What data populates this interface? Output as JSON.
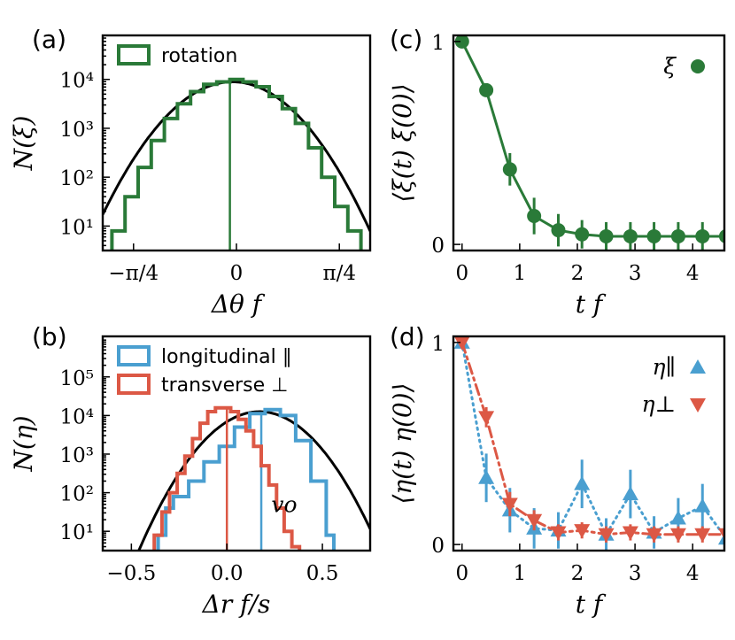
{
  "colors": {
    "green": "#2a7a38",
    "blue": "#4a9fd0",
    "red": "#dc5845",
    "black": "#000000"
  },
  "chart_data": [
    {
      "panel": "(a)",
      "type": "histogram",
      "ylabel": "N(ξ)",
      "xlabel": "Δθ f",
      "yscale": "log",
      "ylim_log10": [
        0.5,
        4.9
      ],
      "xlim": [
        -1.02,
        1.02
      ],
      "yticks": [
        {
          "v": 1,
          "label": "10¹"
        },
        {
          "v": 2,
          "label": "10²"
        },
        {
          "v": 3,
          "label": "10³"
        },
        {
          "v": 4,
          "label": "10⁴"
        }
      ],
      "xticks": [
        {
          "v": -0.785,
          "label": "−π/4"
        },
        {
          "v": 0,
          "label": "0"
        },
        {
          "v": 0.785,
          "label": "π/4"
        }
      ],
      "legend": [
        "rotation"
      ],
      "series": [
        {
          "name": "rotation",
          "color": "green",
          "bin_edges": [
            -0.95,
            -0.85,
            -0.75,
            -0.65,
            -0.55,
            -0.45,
            -0.35,
            -0.25,
            -0.15,
            -0.05,
            0.05,
            0.15,
            0.25,
            0.35,
            0.45,
            0.55,
            0.65,
            0.75,
            0.85,
            0.95
          ],
          "log10_counts": [
            0.9,
            1.6,
            2.2,
            2.75,
            3.2,
            3.5,
            3.75,
            3.9,
            3.95,
            4.0,
            3.95,
            3.85,
            3.65,
            3.4,
            3.1,
            2.6,
            2.0,
            1.4,
            0.9
          ],
          "marker_line_x": -0.05
        }
      ],
      "fit_curve": {
        "type": "gaussian",
        "log10_peak": 3.95,
        "center": -0.03,
        "sigma": 0.28
      }
    },
    {
      "panel": "(b)",
      "type": "histogram",
      "ylabel": "N(η)",
      "xlabel": "Δr f/s",
      "yscale": "log",
      "ylim_log10": [
        0.5,
        6.05
      ],
      "xlim": [
        -0.65,
        0.75
      ],
      "yticks": [
        {
          "v": 1,
          "label": "10¹"
        },
        {
          "v": 2,
          "label": "10²"
        },
        {
          "v": 3,
          "label": "10³"
        },
        {
          "v": 4,
          "label": "10⁴"
        },
        {
          "v": 5,
          "label": "10⁵"
        }
      ],
      "xticks": [
        {
          "v": -0.5,
          "label": "−0.5"
        },
        {
          "v": 0,
          "label": "0.0"
        },
        {
          "v": 0.5,
          "label": "0.5"
        }
      ],
      "legend": [
        "longitudinal ∥",
        "transverse ⊥"
      ],
      "annotation": "vo",
      "series": [
        {
          "name": "longitudinal ∥",
          "color": "blue",
          "bin_edges": [
            -0.36,
            -0.32,
            -0.28,
            -0.2,
            -0.12,
            -0.04,
            0.04,
            0.12,
            0.2,
            0.28,
            0.36,
            0.44,
            0.52,
            0.56
          ],
          "log10_counts": [
            0.9,
            1.6,
            1.9,
            2.3,
            2.8,
            3.2,
            3.7,
            4.05,
            4.15,
            4.0,
            3.35,
            2.3,
            0.9
          ],
          "marker_line_x": 0.18
        },
        {
          "name": "transverse ⊥",
          "color": "red",
          "bin_edges": [
            -0.38,
            -0.34,
            -0.3,
            -0.26,
            -0.22,
            -0.18,
            -0.14,
            -0.1,
            -0.06,
            -0.02,
            0.02,
            0.06,
            0.1,
            0.14,
            0.18,
            0.22,
            0.26,
            0.3,
            0.34,
            0.38
          ],
          "log10_counts": [
            0.9,
            1.5,
            2.0,
            2.5,
            2.95,
            3.4,
            3.8,
            4.1,
            4.2,
            4.2,
            4.1,
            3.9,
            3.6,
            3.2,
            2.7,
            2.2,
            1.6,
            1.0,
            0.6
          ],
          "marker_line_x": 0.0
        }
      ],
      "fit_curve": {
        "type": "gaussian",
        "log10_peak": 4.1,
        "center": 0.17,
        "sigma": 0.155
      }
    },
    {
      "panel": "(c)",
      "type": "line",
      "ylabel": "⟨ξ(t) ξ(0)⟩",
      "xlabel": "t f",
      "xlim": [
        -0.15,
        4.55
      ],
      "ylim": [
        -0.03,
        1.03
      ],
      "xticks": [
        {
          "v": 0,
          "label": "0"
        },
        {
          "v": 1,
          "label": "1"
        },
        {
          "v": 2,
          "label": "2"
        },
        {
          "v": 3,
          "label": "3"
        },
        {
          "v": 4,
          "label": "4"
        }
      ],
      "yticks": [
        {
          "v": 0,
          "label": "0"
        },
        {
          "v": 1,
          "label": "1"
        }
      ],
      "legend": [
        "ξ"
      ],
      "series": [
        {
          "name": "ξ",
          "color": "green",
          "style": "solid",
          "marker": "circle",
          "x": [
            0,
            0.42,
            0.83,
            1.25,
            1.67,
            2.08,
            2.5,
            2.92,
            3.33,
            3.75,
            4.17,
            4.58
          ],
          "y": [
            1.0,
            0.76,
            0.37,
            0.14,
            0.07,
            0.05,
            0.04,
            0.04,
            0.04,
            0.04,
            0.04,
            0.04
          ],
          "err": [
            0,
            0.03,
            0.08,
            0.09,
            0.08,
            0.07,
            0.07,
            0.07,
            0.07,
            0.07,
            0.07,
            0.07
          ]
        }
      ]
    },
    {
      "panel": "(d)",
      "type": "line",
      "ylabel": "⟨η(t) η(0)⟩",
      "xlabel": "t f",
      "xlim": [
        -0.15,
        4.55
      ],
      "ylim": [
        -0.03,
        1.03
      ],
      "xticks": [
        {
          "v": 0,
          "label": "0"
        },
        {
          "v": 1,
          "label": "1"
        },
        {
          "v": 2,
          "label": "2"
        },
        {
          "v": 3,
          "label": "3"
        },
        {
          "v": 4,
          "label": "4"
        }
      ],
      "yticks": [
        {
          "v": 0,
          "label": "0"
        },
        {
          "v": 1,
          "label": "1"
        }
      ],
      "legend": [
        "η∥",
        "η⊥"
      ],
      "series": [
        {
          "name": "η∥",
          "color": "blue",
          "style": "dotted",
          "marker": "triangle-up",
          "x": [
            0,
            0.42,
            0.83,
            1.25,
            1.67,
            2.08,
            2.5,
            2.92,
            3.33,
            3.75,
            4.17,
            4.58
          ],
          "y": [
            1.0,
            0.33,
            0.17,
            0.08,
            0.07,
            0.3,
            0.05,
            0.25,
            0.06,
            0.13,
            0.19,
            0.03
          ],
          "err": [
            0,
            0.12,
            0.11,
            0.1,
            0.09,
            0.12,
            0.08,
            0.12,
            0.08,
            0.1,
            0.11,
            0.05
          ]
        },
        {
          "name": "η⊥",
          "color": "red",
          "style": "dashdot",
          "marker": "triangle-down",
          "x": [
            0,
            0.42,
            0.83,
            1.25,
            1.67,
            2.08,
            2.5,
            2.92,
            3.33,
            3.75,
            4.17,
            4.58
          ],
          "y": [
            1.0,
            0.63,
            0.2,
            0.12,
            0.06,
            0.07,
            0.05,
            0.06,
            0.05,
            0.05,
            0.05,
            0.05
          ],
          "err": [
            0,
            0.05,
            0.06,
            0.05,
            0.04,
            0.04,
            0.04,
            0.04,
            0.04,
            0.04,
            0.04,
            0.04
          ]
        }
      ]
    }
  ]
}
